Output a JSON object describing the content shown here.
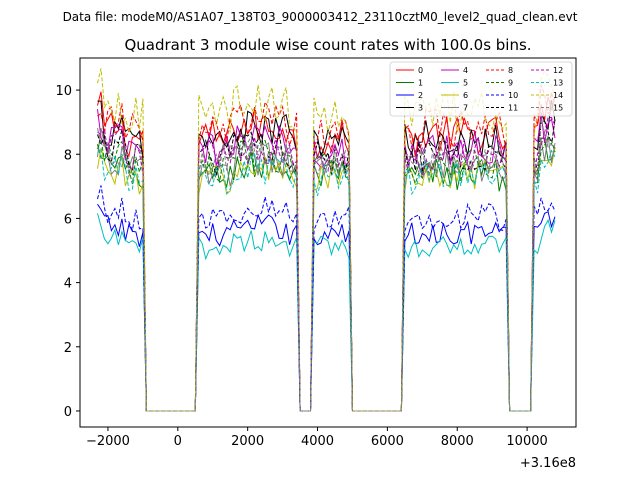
{
  "chart_data": {
    "type": "line",
    "suptitle": "Data file: modeM0/AS1A07_138T03_9000003412_23110cztM0_level2_quad_clean.evt",
    "title": "Quadrant 3 module wise count rates with 100.0s bins.",
    "xlabel": "",
    "ylabel": "",
    "x_offset_label": "+3.16e8",
    "xlim": [
      -2800,
      11400
    ],
    "ylim": [
      -0.5,
      11
    ],
    "xticks": [
      -2000,
      0,
      2000,
      4000,
      6000,
      8000,
      10000
    ],
    "xtick_labels": [
      "−2000",
      "0",
      "2000",
      "4000",
      "6000",
      "8000",
      "10000"
    ],
    "yticks": [
      0,
      2,
      4,
      6,
      8,
      10
    ],
    "ytick_labels": [
      "0",
      "2",
      "4",
      "6",
      "8",
      "10"
    ],
    "grid": false,
    "legend_position": "top-right",
    "legend_columns": 4,
    "bin_size_s": 100,
    "active_intervals": [
      [
        -2300,
        -1000
      ],
      [
        600,
        3400
      ],
      [
        3900,
        4900
      ],
      [
        6500,
        9400
      ],
      [
        10200,
        10800
      ]
    ],
    "series": [
      {
        "name": "0",
        "color": "#ff0000",
        "dash": "solid",
        "level": 8.5
      },
      {
        "name": "1",
        "color": "#008000",
        "dash": "solid",
        "level": 7.3
      },
      {
        "name": "2",
        "color": "#0000ff",
        "dash": "solid",
        "level": 5.5
      },
      {
        "name": "3",
        "color": "#000000",
        "dash": "solid",
        "level": 8.4
      },
      {
        "name": "4",
        "color": "#bf00bf",
        "dash": "solid",
        "level": 8.1
      },
      {
        "name": "5",
        "color": "#00bfbf",
        "dash": "solid",
        "level": 5.1
      },
      {
        "name": "6",
        "color": "#bfbf00",
        "dash": "solid",
        "level": 7.2
      },
      {
        "name": "7",
        "color": "#7f7f7f",
        "dash": "solid",
        "level": 7.5
      },
      {
        "name": "8",
        "color": "#ff0000",
        "dash": "dashed",
        "level": 8.7
      },
      {
        "name": "9",
        "color": "#008000",
        "dash": "dashed",
        "level": 7.6
      },
      {
        "name": "10",
        "color": "#0000ff",
        "dash": "dashed",
        "level": 6.0
      },
      {
        "name": "11",
        "color": "#000000",
        "dash": "dashed",
        "level": 7.9
      },
      {
        "name": "12",
        "color": "#bf00bf",
        "dash": "dashed",
        "level": 7.9
      },
      {
        "name": "13",
        "color": "#00bfbf",
        "dash": "dashed",
        "level": 7.2
      },
      {
        "name": "14",
        "color": "#bfbf00",
        "dash": "dashed",
        "level": 9.2
      },
      {
        "name": "15",
        "color": "#7f7f7f",
        "dash": "dashed",
        "level": 7.8
      }
    ]
  }
}
